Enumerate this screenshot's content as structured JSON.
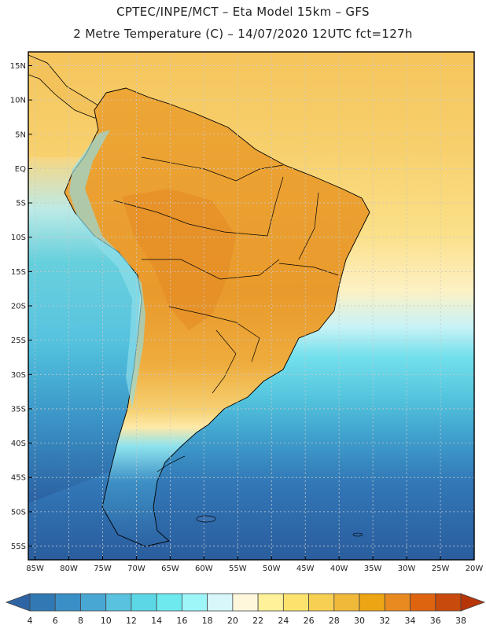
{
  "header": {
    "line1": "CPTEC/INPE/MCT –   Eta Model 15km – GFS",
    "line2": "2 Metre Temperature (C) – 14/07/2020 12UTC fct=127h"
  },
  "map": {
    "lat_range": [
      -57,
      17
    ],
    "lon_range": [
      -86,
      -20
    ],
    "lat_ticks": [
      "15N",
      "10N",
      "5N",
      "EQ",
      "5S",
      "10S",
      "15S",
      "20S",
      "25S",
      "30S",
      "35S",
      "40S",
      "45S",
      "50S",
      "55S"
    ],
    "lon_ticks": [
      "85W",
      "80W",
      "75W",
      "70W",
      "65W",
      "60W",
      "55W",
      "50W",
      "45W",
      "40W",
      "35W",
      "30W",
      "25W",
      "20W"
    ]
  },
  "colorbar": {
    "labels": [
      "4",
      "6",
      "8",
      "10",
      "12",
      "14",
      "16",
      "18",
      "20",
      "22",
      "24",
      "26",
      "28",
      "30",
      "32",
      "34",
      "36",
      "38"
    ],
    "colors": [
      "#2f64a4",
      "#3179b5",
      "#3a8fc6",
      "#49a7d4",
      "#59c2df",
      "#5cd7e6",
      "#6ee9ee",
      "#9ef6f9",
      "#d7f7fb",
      "#fff7dc",
      "#fff19a",
      "#fde36d",
      "#f7cf52",
      "#f1b93a",
      "#eda514",
      "#e88a20",
      "#df6410",
      "#c84a0c",
      "#b83508"
    ]
  },
  "colors": {
    "ocean_cold": "#2a5d9e",
    "ocean_mid": "#45b9d8",
    "ocean_warm": "#f6d072",
    "land_hot": "#eca43c",
    "border": "#000000",
    "grid": "#c8c8c8"
  }
}
